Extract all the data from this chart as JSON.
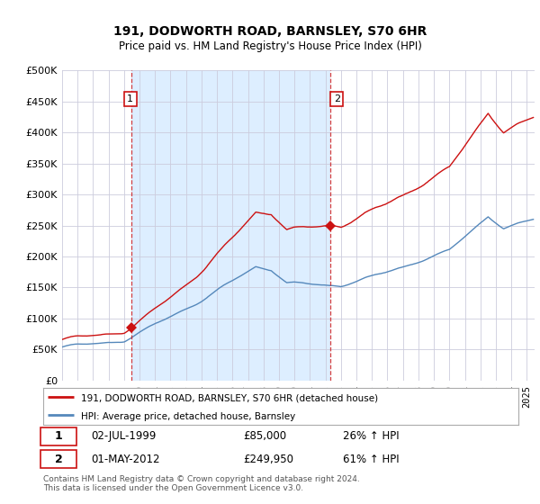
{
  "title": "191, DODWORTH ROAD, BARNSLEY, S70 6HR",
  "subtitle": "Price paid vs. HM Land Registry's House Price Index (HPI)",
  "ylabel_ticks": [
    "£0",
    "£50K",
    "£100K",
    "£150K",
    "£200K",
    "£250K",
    "£300K",
    "£350K",
    "£400K",
    "£450K",
    "£500K"
  ],
  "ytick_values": [
    0,
    50000,
    100000,
    150000,
    200000,
    250000,
    300000,
    350000,
    400000,
    450000,
    500000
  ],
  "ylim": [
    0,
    500000
  ],
  "xlim_start": 1995.0,
  "xlim_end": 2025.5,
  "hpi_color": "#5588bb",
  "price_color": "#cc1111",
  "shade_color": "#ddeeff",
  "marker1_date": 1999.497,
  "marker1_price": 85000,
  "marker1_label": "02-JUL-1999",
  "marker1_value": "£85,000",
  "marker1_pct": "26% ↑ HPI",
  "marker2_date": 2012.33,
  "marker2_price": 249950,
  "marker2_label": "01-MAY-2012",
  "marker2_value": "£249,950",
  "marker2_pct": "61% ↑ HPI",
  "legend_line1": "191, DODWORTH ROAD, BARNSLEY, S70 6HR (detached house)",
  "legend_line2": "HPI: Average price, detached house, Barnsley",
  "footer": "Contains HM Land Registry data © Crown copyright and database right 2024.\nThis data is licensed under the Open Government Licence v3.0.",
  "background_color": "#ffffff",
  "grid_color": "#ccccdd"
}
